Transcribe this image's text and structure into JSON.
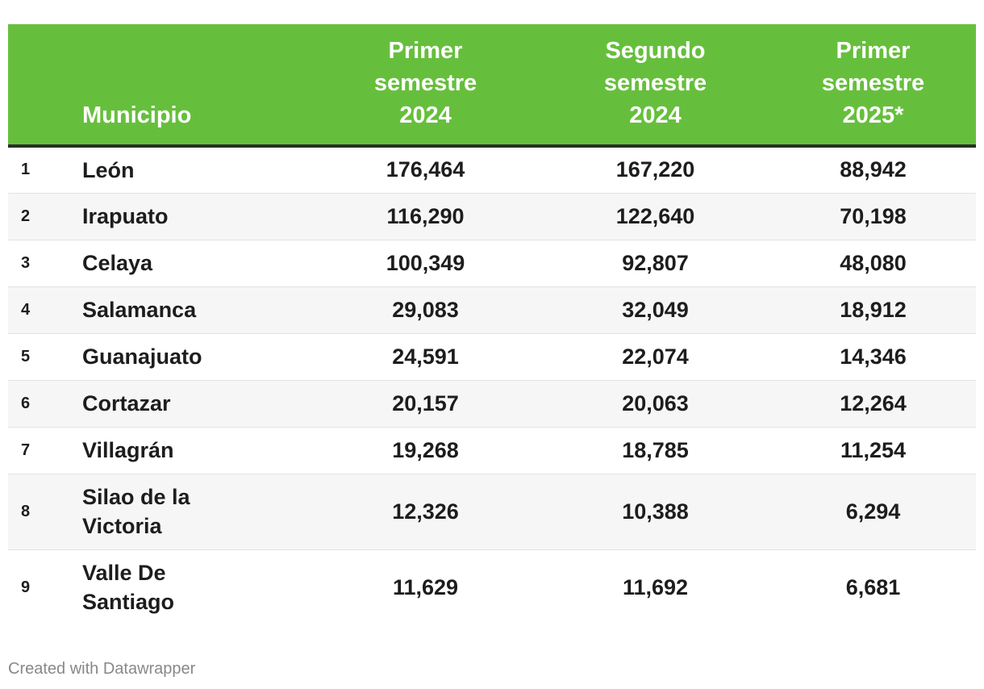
{
  "chart_data": {
    "type": "table",
    "columns": [
      "",
      "Municipio",
      "Primer semestre 2024",
      "Segundo semestre 2024",
      "Primer semestre 2025*"
    ],
    "rows": [
      {
        "rank": "1",
        "municipio": "León",
        "s1_2024": "176,464",
        "s2_2024": "167,220",
        "s1_2025": "88,942"
      },
      {
        "rank": "2",
        "municipio": "Irapuato",
        "s1_2024": "116,290",
        "s2_2024": "122,640",
        "s1_2025": "70,198"
      },
      {
        "rank": "3",
        "municipio": "Celaya",
        "s1_2024": "100,349",
        "s2_2024": "92,807",
        "s1_2025": "48,080"
      },
      {
        "rank": "4",
        "municipio": "Salamanca",
        "s1_2024": "29,083",
        "s2_2024": "32,049",
        "s1_2025": "18,912"
      },
      {
        "rank": "5",
        "municipio": "Guanajuato",
        "s1_2024": "24,591",
        "s2_2024": "22,074",
        "s1_2025": "14,346"
      },
      {
        "rank": "6",
        "municipio": "Cortazar",
        "s1_2024": "20,157",
        "s2_2024": "20,063",
        "s1_2025": "12,264"
      },
      {
        "rank": "7",
        "municipio": "Villagrán",
        "s1_2024": "19,268",
        "s2_2024": "18,785",
        "s1_2025": "11,254"
      },
      {
        "rank": "8",
        "municipio": "Silao de la Victoria",
        "s1_2024": "12,326",
        "s2_2024": "10,388",
        "s1_2025": "6,294"
      },
      {
        "rank": "9",
        "municipio": "Valle De Santiago",
        "s1_2024": "11,629",
        "s2_2024": "11,692",
        "s1_2025": "6,681"
      }
    ],
    "header_color": "#66bf3c",
    "alt_row_color": "#f6f6f6"
  },
  "footer": {
    "credit": "Created with Datawrapper"
  }
}
